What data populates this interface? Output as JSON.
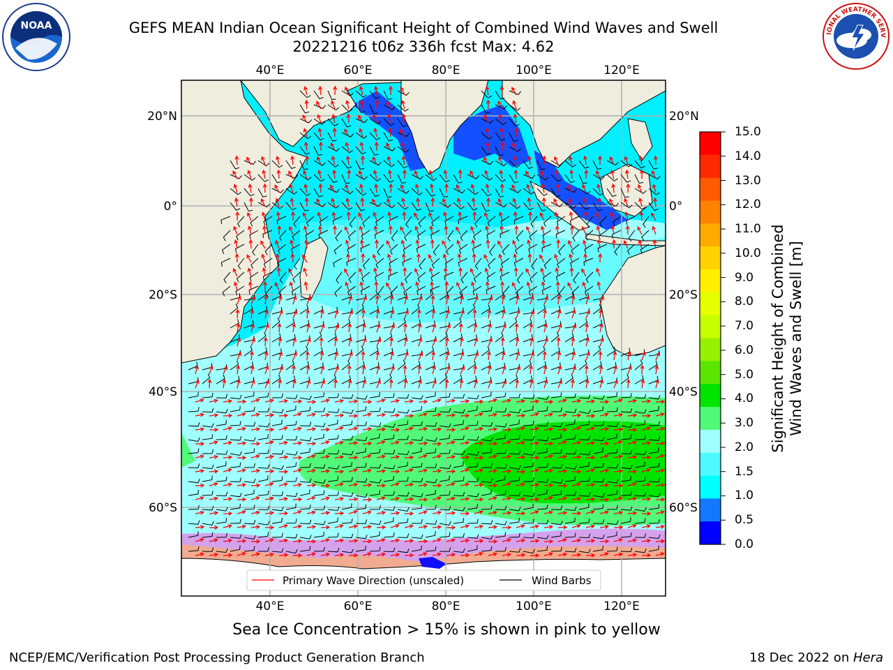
{
  "header": {
    "title_line1": "GEFS MEAN Indian Ocean Significant Height of Combined Wind Waves and Swell",
    "title_line2": "20221216 t06z 336h fcst   Max: 4.62"
  },
  "map": {
    "lon_ticks": [
      "40°E",
      "60°E",
      "80°E",
      "100°E",
      "120°E"
    ],
    "lat_ticks": [
      "20°N",
      "0°",
      "20°S",
      "40°S",
      "60°S"
    ],
    "lon_range": [
      20,
      129
    ],
    "lat_range": [
      -75,
      28
    ],
    "colors": {
      "land": "#efedde",
      "ocean_low": "#a0ffff",
      "ocean_mid": "#00f0ff",
      "ocean_light": "#4ffaff",
      "shallow": "#1450ff",
      "green_light": "#50fa78",
      "green": "#00e400",
      "ice_pink": "#ff55dd",
      "ice_orange": "#ffb060",
      "wave_arrow": "#ff0000",
      "wind_barb": "#000000"
    }
  },
  "legend": {
    "wave_label": "Primary Wave Direction (unscaled)",
    "wind_label": "Wind Barbs"
  },
  "colorbar": {
    "title_line1": "Significant Height of Combined",
    "title_line2": "Wind Waves and Swell [m]",
    "labels": [
      "15.0",
      "14.0",
      "13.0",
      "12.0",
      "11.0",
      "10.0",
      "9.0",
      "8.0",
      "7.0",
      "6.0",
      "5.0",
      "4.0",
      "3.0",
      "2.0",
      "1.5",
      "1.0",
      "0.5",
      "0.0"
    ],
    "colors": [
      "#ff0000",
      "#ff2800",
      "#ff5a00",
      "#ff8200",
      "#ffaa00",
      "#ffd200",
      "#fff000",
      "#e6ff00",
      "#c8ff00",
      "#96f000",
      "#5ae600",
      "#00e400",
      "#50fa78",
      "#a0ffff",
      "#4ffaff",
      "#00ffff",
      "#1478ff",
      "#0000ff"
    ]
  },
  "notes": {
    "sea_ice": "Sea Ice Concentration > 15% is shown in pink to yellow"
  },
  "footer": {
    "left": "NCEP/EMC/Verification Post Processing Product Generation Branch",
    "right_date": "18 Dec 2022 on ",
    "right_machine": "Hera"
  },
  "logos": {
    "noaa_text": "NOAA",
    "nws_text": "NATIONAL WEATHER SERVICE"
  }
}
